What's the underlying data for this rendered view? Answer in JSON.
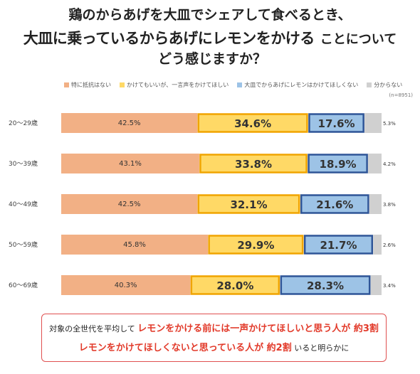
{
  "title": {
    "line1": "鶏のからあげを大皿でシェアして食べるとき、",
    "line2_emphasis": "大皿に乗っているからあげにレモンをかける",
    "line2_rest": "ことについて",
    "line3": "どう感じますか？"
  },
  "sample_size": "(n=8951)",
  "note": {
    "line1_prefix": "対象の全世代を平均して",
    "line1_emphasis": "レモンをかける前には一声かけてほしいと思う人が 約3割",
    "line2_emphasis": "レモンをかけてほしくないと思っている人が 約2割",
    "line2_suffix": "いると明らかに"
  },
  "chart_data": {
    "type": "bar",
    "orientation": "horizontal",
    "stacked": true,
    "unit": "%",
    "xlim": [
      0,
      100
    ],
    "grid": false,
    "legend": "top",
    "categories": [
      "20～29歳",
      "30～39歳",
      "40～49歳",
      "50～59歳",
      "60～69歳"
    ],
    "series": [
      {
        "name": "特に抵抗はない",
        "color": "#f2b085",
        "values": [
          42.5,
          43.1,
          42.5,
          45.8,
          40.3
        ]
      },
      {
        "name": "かけてもいいが、一言声をかけてほしい",
        "color": "#ffd966",
        "border": "#f0a400",
        "values": [
          34.6,
          33.8,
          32.1,
          29.9,
          28.0
        ]
      },
      {
        "name": "大皿でからあげにレモンはかけてほしくない",
        "color": "#9dc3e6",
        "border": "#2f5597",
        "values": [
          17.6,
          18.9,
          21.6,
          21.7,
          28.3
        ]
      },
      {
        "name": "分からない",
        "color": "#d0d0d0",
        "values": [
          5.3,
          4.2,
          3.8,
          2.6,
          3.4
        ]
      }
    ]
  }
}
